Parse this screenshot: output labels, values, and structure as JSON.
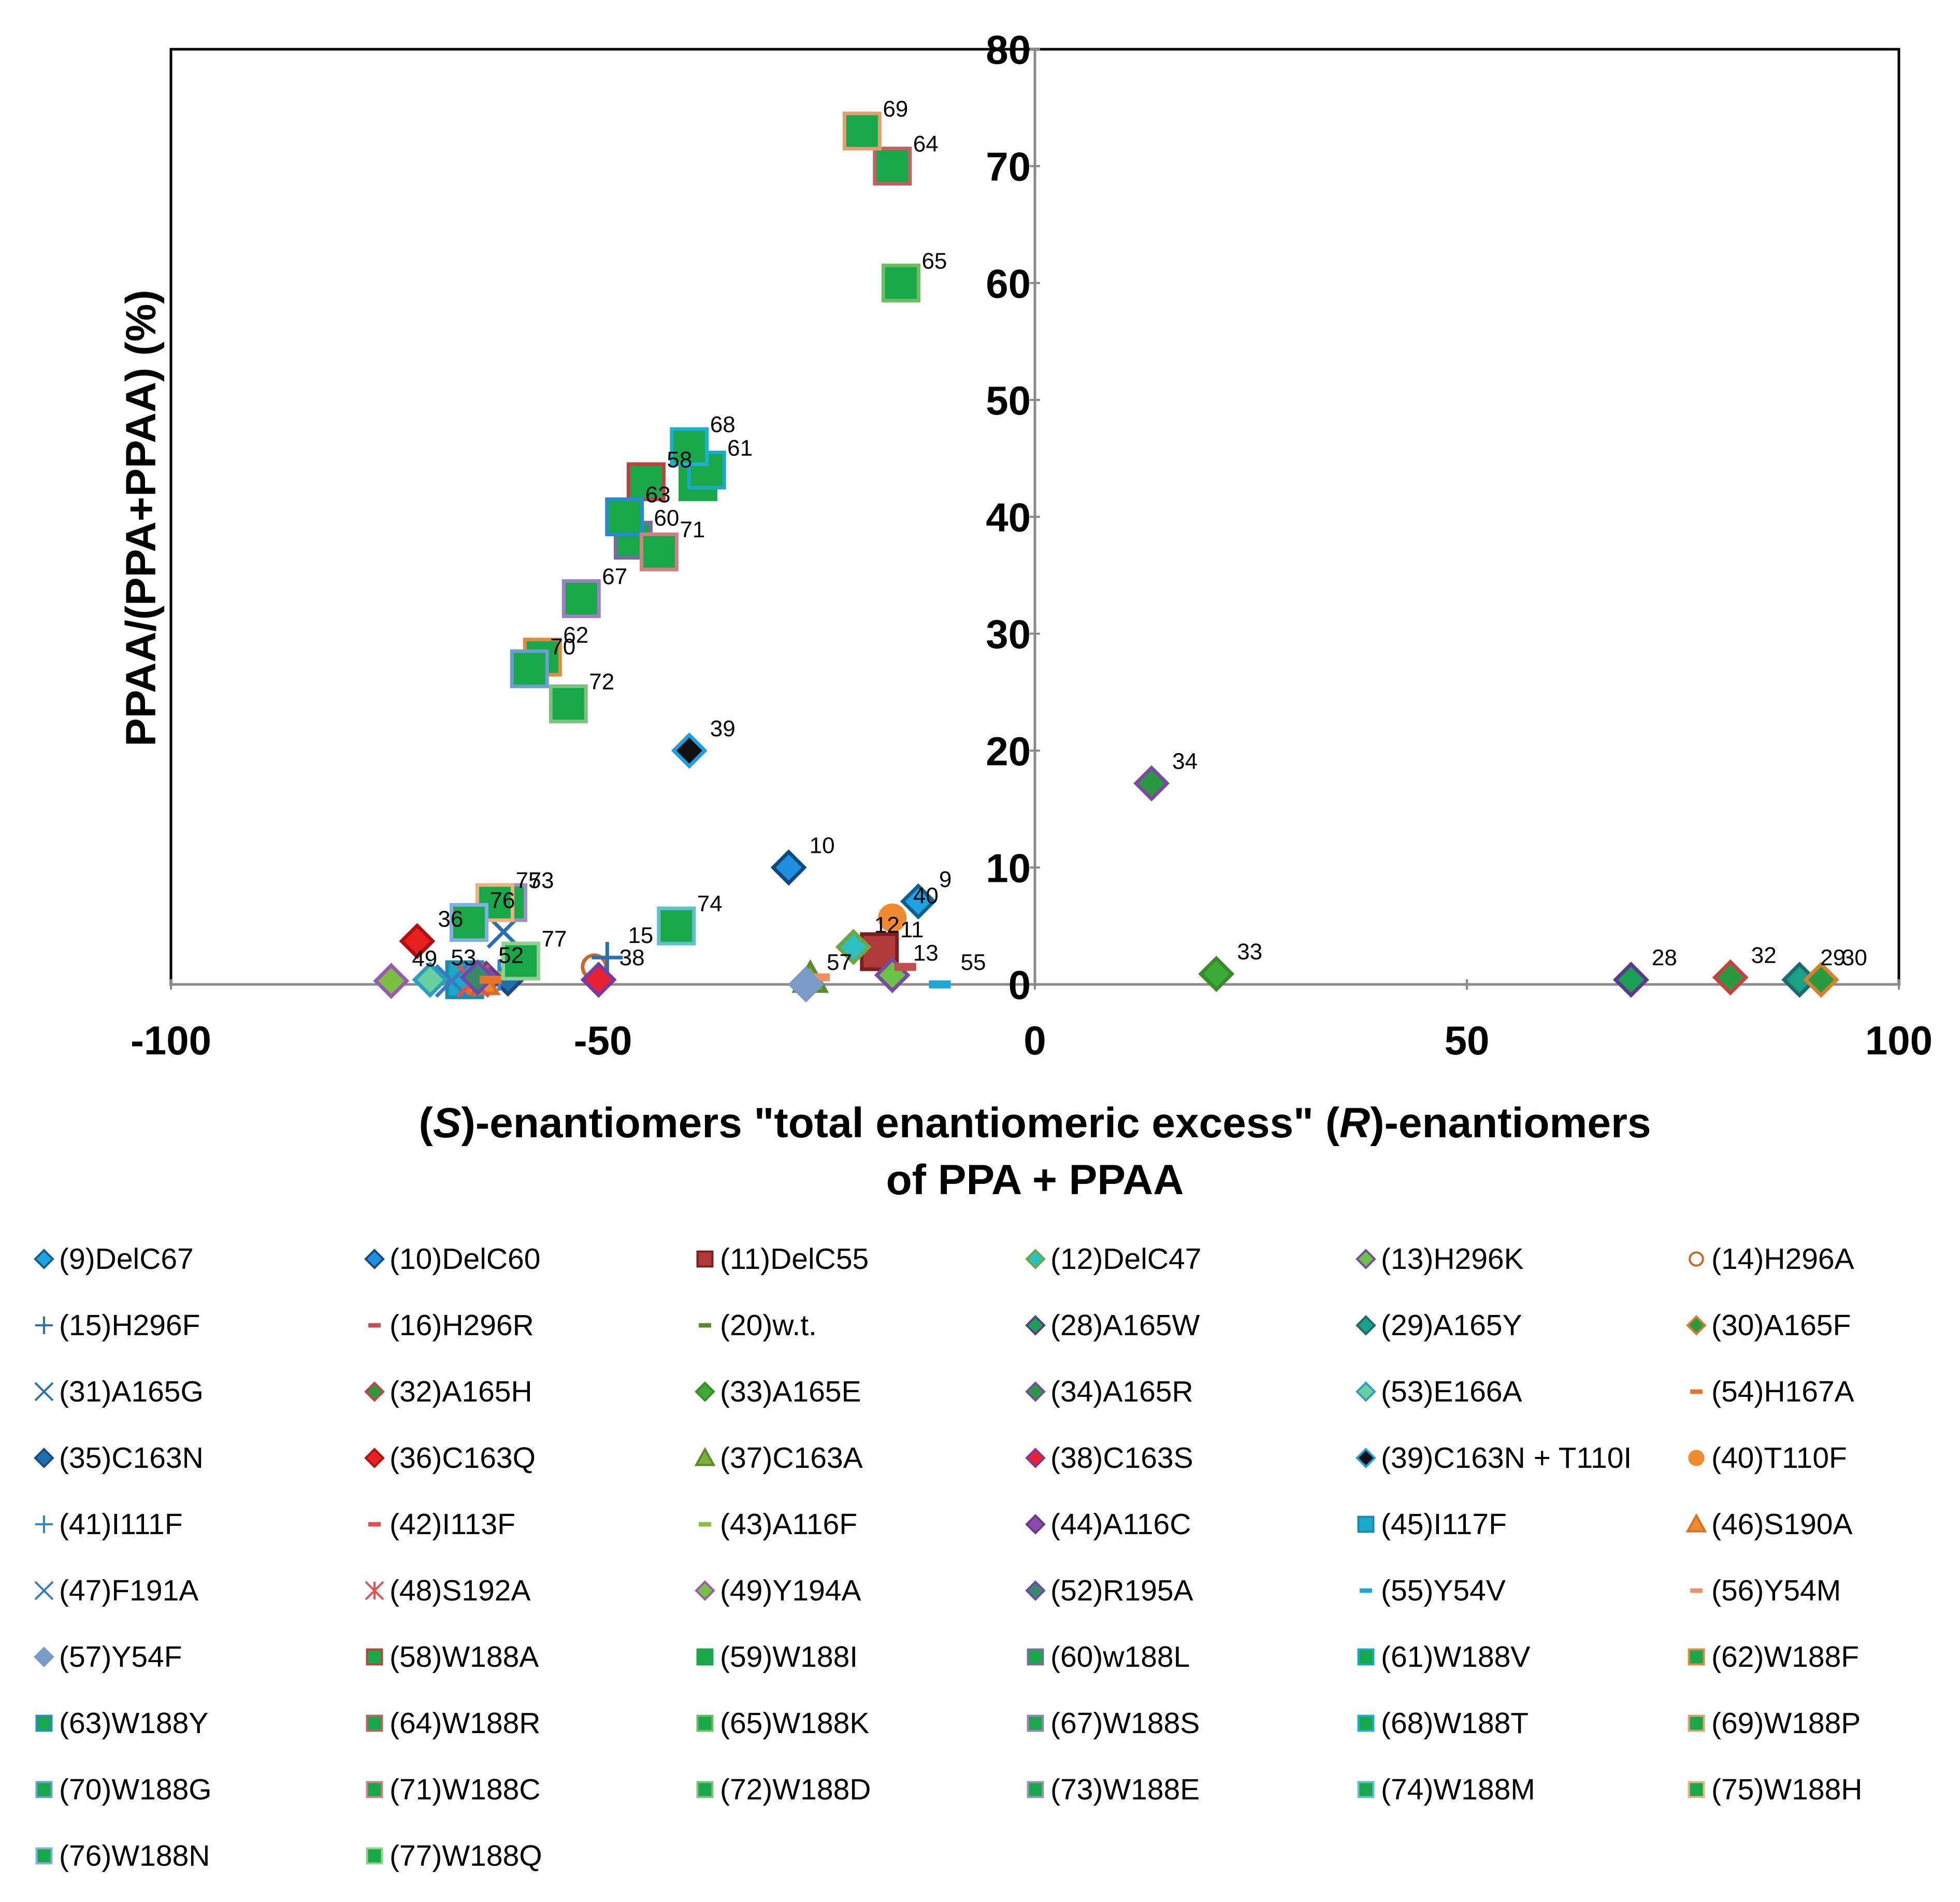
{
  "chart_data": {
    "type": "scatter",
    "title": "",
    "xlabel_line1_parts": [
      "(",
      "S",
      ")-enantiomers  \"total enantiomeric excess\" (",
      "R",
      ")-enantiomers"
    ],
    "xlabel_line2": "of PPA + PPAA",
    "ylabel": "PPAA/(PPA+PPAA) (%)",
    "xlim": [
      -100,
      100
    ],
    "ylim": [
      0,
      80
    ],
    "x_ticks": [
      "-100",
      "-50",
      "0",
      "50",
      "100"
    ],
    "x_tick_values": [
      -100,
      -50,
      0,
      50,
      100
    ],
    "y_ticks": [
      "0",
      "10",
      "20",
      "30",
      "40",
      "50",
      "60",
      "70",
      "80"
    ],
    "y_tick_values": [
      0,
      10,
      20,
      30,
      40,
      50,
      60,
      70,
      80
    ],
    "grid": false,
    "legend_position": "bottom",
    "points": [
      {
        "id": "9",
        "x": -13.5,
        "y": 7.1,
        "label": "9"
      },
      {
        "id": "10",
        "x": -28.5,
        "y": 10,
        "label": "10"
      },
      {
        "id": "11",
        "x": -18,
        "y": 2.8,
        "label": "11"
      },
      {
        "id": "12",
        "x": -21,
        "y": 3.2,
        "label": "12"
      },
      {
        "id": "13",
        "x": -16.5,
        "y": 0.8,
        "label": "13"
      },
      {
        "id": "14",
        "x": -51,
        "y": 1.5,
        "label": ""
      },
      {
        "id": "15",
        "x": -49.5,
        "y": 2.3,
        "label": "15"
      },
      {
        "id": "16",
        "x": -15,
        "y": 1.5,
        "label": ""
      },
      {
        "id": "20",
        "x": -61,
        "y": 0.8,
        "label": ""
      },
      {
        "id": "28",
        "x": 69,
        "y": 0.4,
        "label": "28"
      },
      {
        "id": "29",
        "x": 88.5,
        "y": 0.4,
        "label": "29"
      },
      {
        "id": "30",
        "x": 91,
        "y": 0.4,
        "label": "30"
      },
      {
        "id": "31",
        "x": -61.5,
        "y": 4.5,
        "label": ""
      },
      {
        "id": "32",
        "x": 80.5,
        "y": 0.6,
        "label": "32"
      },
      {
        "id": "33",
        "x": 21,
        "y": 0.9,
        "label": "33"
      },
      {
        "id": "34",
        "x": 13.5,
        "y": 17.2,
        "label": "34"
      },
      {
        "id": "35",
        "x": -61,
        "y": 0.5,
        "label": ""
      },
      {
        "id": "36",
        "x": -71.5,
        "y": 3.7,
        "label": "36"
      },
      {
        "id": "37",
        "x": -26,
        "y": 0.5,
        "label": ""
      },
      {
        "id": "38",
        "x": -50.5,
        "y": 0.4,
        "label": "38"
      },
      {
        "id": "39",
        "x": -40,
        "y": 20,
        "label": "39"
      },
      {
        "id": "40",
        "x": -16.5,
        "y": 5.7,
        "label": "40"
      },
      {
        "id": "41",
        "x": -62,
        "y": 0.8,
        "label": ""
      },
      {
        "id": "42",
        "x": -63,
        "y": 0.6,
        "label": ""
      },
      {
        "id": "43",
        "x": -62.5,
        "y": 0.8,
        "label": ""
      },
      {
        "id": "44",
        "x": -63.5,
        "y": 0.5,
        "label": ""
      },
      {
        "id": "45",
        "x": -66,
        "y": 0.4,
        "label": ""
      },
      {
        "id": "46",
        "x": -64,
        "y": 0.3,
        "label": ""
      },
      {
        "id": "47",
        "x": -67.5,
        "y": 0.3,
        "label": ""
      },
      {
        "id": "48",
        "x": -65,
        "y": 0.3,
        "label": ""
      },
      {
        "id": "49",
        "x": -74.5,
        "y": 0.3,
        "label": "49"
      },
      {
        "id": "52",
        "x": -64.5,
        "y": 0.6,
        "label": "52"
      },
      {
        "id": "53",
        "x": -70,
        "y": 0.4,
        "label": "53"
      },
      {
        "id": "54",
        "x": -63,
        "y": 0.4,
        "label": ""
      },
      {
        "id": "55",
        "x": -11,
        "y": 0,
        "label": "55"
      },
      {
        "id": "56",
        "x": -25,
        "y": 0.6,
        "label": ""
      },
      {
        "id": "57",
        "x": -26.5,
        "y": 0,
        "label": "57"
      },
      {
        "id": "58",
        "x": -45,
        "y": 43,
        "label": "58"
      },
      {
        "id": "59",
        "x": -39,
        "y": 43,
        "label": ""
      },
      {
        "id": "60",
        "x": -46.5,
        "y": 38,
        "label": "60"
      },
      {
        "id": "61",
        "x": -38,
        "y": 44,
        "label": "61"
      },
      {
        "id": "62",
        "x": -57,
        "y": 28,
        "label": "62"
      },
      {
        "id": "63",
        "x": -47.5,
        "y": 40,
        "label": "63"
      },
      {
        "id": "64",
        "x": -16.5,
        "y": 70,
        "label": "64"
      },
      {
        "id": "65",
        "x": -15.5,
        "y": 60,
        "label": "65"
      },
      {
        "id": "67",
        "x": -52.5,
        "y": 33,
        "label": "67"
      },
      {
        "id": "68",
        "x": -40,
        "y": 46,
        "label": "68"
      },
      {
        "id": "69",
        "x": -20,
        "y": 73,
        "label": "69"
      },
      {
        "id": "70",
        "x": -58.5,
        "y": 27,
        "label": "70"
      },
      {
        "id": "71",
        "x": -43.5,
        "y": 37,
        "label": "71"
      },
      {
        "id": "72",
        "x": -54,
        "y": 24,
        "label": "72"
      },
      {
        "id": "73",
        "x": -61,
        "y": 7,
        "label": "73"
      },
      {
        "id": "74",
        "x": -41.5,
        "y": 5,
        "label": "74"
      },
      {
        "id": "75",
        "x": -62.5,
        "y": 7,
        "label": "75"
      },
      {
        "id": "76",
        "x": -65.5,
        "y": 5.3,
        "label": "76"
      },
      {
        "id": "77",
        "x": -59.5,
        "y": 2,
        "label": "77"
      }
    ],
    "legend": [
      {
        "id": "9",
        "text": "(9)DelC67"
      },
      {
        "id": "10",
        "text": "(10)DelC60"
      },
      {
        "id": "11",
        "text": "(11)DelC55"
      },
      {
        "id": "12",
        "text": "(12)DelC47"
      },
      {
        "id": "13",
        "text": "(13)H296K"
      },
      {
        "id": "14",
        "text": "(14)H296A"
      },
      {
        "id": "15",
        "text": "(15)H296F"
      },
      {
        "id": "16",
        "text": "(16)H296R"
      },
      {
        "id": "20",
        "text": "(20)w.t."
      },
      {
        "id": "28",
        "text": "(28)A165W"
      },
      {
        "id": "29",
        "text": "(29)A165Y"
      },
      {
        "id": "30",
        "text": "(30)A165F"
      },
      {
        "id": "31",
        "text": "(31)A165G"
      },
      {
        "id": "32",
        "text": "(32)A165H"
      },
      {
        "id": "33",
        "text": "(33)A165E"
      },
      {
        "id": "34",
        "text": "(34)A165R"
      },
      {
        "id": "53",
        "text": "(53)E166A"
      },
      {
        "id": "54",
        "text": "(54)H167A"
      },
      {
        "id": "35",
        "text": "(35)C163N"
      },
      {
        "id": "36",
        "text": "(36)C163Q"
      },
      {
        "id": "37",
        "text": "(37)C163A"
      },
      {
        "id": "38",
        "text": "(38)C163S"
      },
      {
        "id": "39",
        "text": "(39)C163N + T110I"
      },
      {
        "id": "40",
        "text": "(40)T110F"
      },
      {
        "id": "41",
        "text": "(41)I111F"
      },
      {
        "id": "42",
        "text": "(42)I113F"
      },
      {
        "id": "43",
        "text": "(43)A116F"
      },
      {
        "id": "44",
        "text": "(44)A116C"
      },
      {
        "id": "45",
        "text": "(45)I117F"
      },
      {
        "id": "46",
        "text": "(46)S190A"
      },
      {
        "id": "47",
        "text": "(47)F191A"
      },
      {
        "id": "48",
        "text": "(48)S192A"
      },
      {
        "id": "49",
        "text": "(49)Y194A"
      },
      {
        "id": "52",
        "text": "(52)R195A"
      },
      {
        "id": "55",
        "text": "(55)Y54V"
      },
      {
        "id": "56",
        "text": "(56)Y54M"
      },
      {
        "id": "57",
        "text": "(57)Y54F"
      },
      {
        "id": "58",
        "text": "(58)W188A"
      },
      {
        "id": "59",
        "text": "(59)W188I"
      },
      {
        "id": "60",
        "text": "(60)w188L"
      },
      {
        "id": "61",
        "text": "(61)W188V"
      },
      {
        "id": "62",
        "text": "(62)W188F"
      },
      {
        "id": "63",
        "text": "(63)W188Y"
      },
      {
        "id": "64",
        "text": "(64)W188R"
      },
      {
        "id": "65",
        "text": "(65)W188K"
      },
      {
        "id": "67",
        "text": "(67)W188S"
      },
      {
        "id": "68",
        "text": "(68)W188T"
      },
      {
        "id": "69",
        "text": "(69)W188P"
      },
      {
        "id": "70",
        "text": "(70)W188G"
      },
      {
        "id": "71",
        "text": "(71)W188C"
      },
      {
        "id": "72",
        "text": "(72)W188D"
      },
      {
        "id": "73",
        "text": "(73)W188E"
      },
      {
        "id": "74",
        "text": "(74)W188M"
      },
      {
        "id": "75",
        "text": "(75)W188H"
      },
      {
        "id": "76",
        "text": "(76)W188N"
      },
      {
        "id": "77",
        "text": "(77)W188Q"
      }
    ],
    "marker_styles": {
      "9": {
        "shape": "diamond",
        "fill": "#1fa3e0",
        "stroke": "#0d5f91"
      },
      "10": {
        "shape": "diamond",
        "fill": "#1f8fe0",
        "stroke": "#0a4a80"
      },
      "11": {
        "shape": "square",
        "fill": "#b03a3a",
        "stroke": "#7a1f1f"
      },
      "12": {
        "shape": "diamond",
        "fill": "#2dbfbf",
        "stroke": "#6fa640"
      },
      "13": {
        "shape": "diamond",
        "fill": "#6ac24a",
        "stroke": "#7a4aa0"
      },
      "14": {
        "shape": "circle-open",
        "fill": "none",
        "stroke": "#c8682a"
      },
      "15": {
        "shape": "plus",
        "fill": "none",
        "stroke": "#2a6fb0"
      },
      "16": {
        "shape": "dash",
        "fill": "none",
        "stroke": "#c05050"
      },
      "20": {
        "shape": "dash",
        "fill": "none",
        "stroke": "#5a8a2a"
      },
      "28": {
        "shape": "diamond",
        "fill": "#1aa055",
        "stroke": "#5a3a8a"
      },
      "29": {
        "shape": "diamond",
        "fill": "#1aa085",
        "stroke": "#1a6a70"
      },
      "30": {
        "shape": "diamond",
        "fill": "#2a9a40",
        "stroke": "#d8802a"
      },
      "31": {
        "shape": "x",
        "fill": "none",
        "stroke": "#2a6fb0"
      },
      "32": {
        "shape": "diamond",
        "fill": "#2a9a40",
        "stroke": "#c84040"
      },
      "33": {
        "shape": "diamond",
        "fill": "#3aaa3a",
        "stroke": "#3a8a2a"
      },
      "34": {
        "shape": "diamond",
        "fill": "#2a9a40",
        "stroke": "#7a4aa0"
      },
      "53": {
        "shape": "diamond",
        "fill": "#6ad0a0",
        "stroke": "#2aa0c0"
      },
      "54": {
        "shape": "dash",
        "fill": "none",
        "stroke": "#e8742a"
      },
      "35": {
        "shape": "diamond",
        "fill": "#1f6fb0",
        "stroke": "#1a4a80"
      },
      "36": {
        "shape": "diamond",
        "fill": "#e82020",
        "stroke": "#b01010"
      },
      "37": {
        "shape": "triangle",
        "fill": "#7ab03a",
        "stroke": "#5a8a2a"
      },
      "38": {
        "shape": "diamond",
        "fill": "#e82030",
        "stroke": "#7a3aa0"
      },
      "39": {
        "shape": "diamond",
        "fill": "#111111",
        "stroke": "#1aa0e0"
      },
      "40": {
        "shape": "circle",
        "fill": "#f08a30",
        "stroke": "#f08a30"
      },
      "41": {
        "shape": "plus",
        "fill": "none",
        "stroke": "#2a8ad0"
      },
      "42": {
        "shape": "dash",
        "fill": "none",
        "stroke": "#e05050"
      },
      "43": {
        "shape": "dash",
        "fill": "none",
        "stroke": "#8ac040"
      },
      "44": {
        "shape": "diamond",
        "fill": "#8a4ab0",
        "stroke": "#6a3a8a"
      },
      "45": {
        "shape": "square",
        "fill": "#1aa8c8",
        "stroke": "#1a8aa8"
      },
      "46": {
        "shape": "triangle",
        "fill": "#f08a30",
        "stroke": "#d87020"
      },
      "47": {
        "shape": "x",
        "fill": "none",
        "stroke": "#3a7ac0"
      },
      "48": {
        "shape": "star",
        "fill": "none",
        "stroke": "#e05050"
      },
      "49": {
        "shape": "diamond",
        "fill": "#7ac040",
        "stroke": "#9a5ab0"
      },
      "52": {
        "shape": "diamond",
        "fill": "#3a8a6a",
        "stroke": "#6a4ab0"
      },
      "55": {
        "shape": "dash",
        "fill": "none",
        "stroke": "#1aa8d8"
      },
      "56": {
        "shape": "dash",
        "fill": "none",
        "stroke": "#f09060"
      },
      "57": {
        "shape": "diamond",
        "fill": "#7a9ac8",
        "stroke": "#7a9ac8"
      },
      "58": {
        "shape": "square",
        "fill": "#18a84a",
        "stroke": "#c04040"
      },
      "59": {
        "shape": "square",
        "fill": "#18a84a",
        "stroke": "#18a84a"
      },
      "60": {
        "shape": "square",
        "fill": "#18a84a",
        "stroke": "#7a6aa0"
      },
      "61": {
        "shape": "square",
        "fill": "#18a84a",
        "stroke": "#1aa8c8"
      },
      "62": {
        "shape": "square",
        "fill": "#18a84a",
        "stroke": "#e08a40"
      },
      "63": {
        "shape": "square",
        "fill": "#18a84a",
        "stroke": "#2a8ad0"
      },
      "64": {
        "shape": "square",
        "fill": "#18a84a",
        "stroke": "#c06060"
      },
      "65": {
        "shape": "square",
        "fill": "#18a84a",
        "stroke": "#6ac060"
      },
      "67": {
        "shape": "square",
        "fill": "#18a84a",
        "stroke": "#9a80c0"
      },
      "68": {
        "shape": "square",
        "fill": "#18a84a",
        "stroke": "#1ab0d0"
      },
      "69": {
        "shape": "square",
        "fill": "#18a84a",
        "stroke": "#e0a070"
      },
      "70": {
        "shape": "square",
        "fill": "#18a84a",
        "stroke": "#6aa0d0"
      },
      "71": {
        "shape": "square",
        "fill": "#18a84a",
        "stroke": "#d08080"
      },
      "72": {
        "shape": "square",
        "fill": "#18a84a",
        "stroke": "#80c080"
      },
      "73": {
        "shape": "square",
        "fill": "#18a84a",
        "stroke": "#a090c0"
      },
      "74": {
        "shape": "square",
        "fill": "#18a84a",
        "stroke": "#60c0d0"
      },
      "75": {
        "shape": "square",
        "fill": "#18a84a",
        "stroke": "#f0b080"
      },
      "76": {
        "shape": "square",
        "fill": "#18a84a",
        "stroke": "#80b0e0"
      },
      "77": {
        "shape": "square",
        "fill": "#18a84a",
        "stroke": "#90d090"
      }
    }
  }
}
